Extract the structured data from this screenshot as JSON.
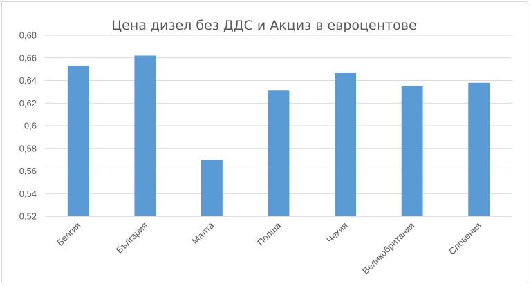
{
  "chart_data": {
    "type": "bar",
    "title": "Цена дизел без ДДС и Акциз в евроцентове",
    "xlabel": "",
    "ylabel": "",
    "categories": [
      "Белгия",
      "България",
      "Малта",
      "Полша",
      "Чехия",
      "Великобритания",
      "Словения"
    ],
    "values": [
      0.653,
      0.662,
      0.57,
      0.631,
      0.647,
      0.635,
      0.638
    ],
    "ylim": [
      0.52,
      0.68
    ],
    "yticks": [
      0.52,
      0.54,
      0.56,
      0.58,
      0.6,
      0.62,
      0.64,
      0.66,
      0.68
    ],
    "ytick_labels": [
      "0,52",
      "0,54",
      "0,56",
      "0,58",
      "0,6",
      "0,62",
      "0,64",
      "0,66",
      "0,68"
    ],
    "grid": true,
    "legend": "none",
    "bar_color": "#5b9bd5"
  }
}
